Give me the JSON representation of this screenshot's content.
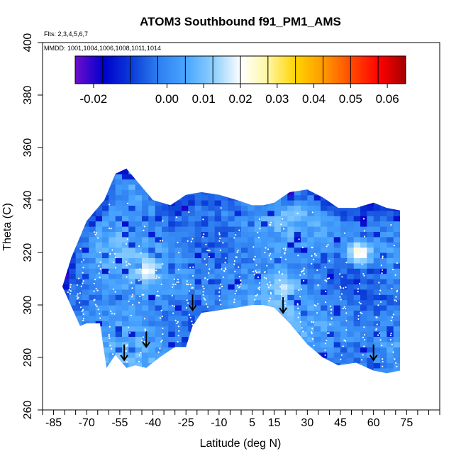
{
  "chart_data": {
    "type": "heatmap",
    "title": "ATOM3 Southbound f91_PM1_AMS",
    "subtitle": "Flts: 2,3,4,5,6,7",
    "annotation": "MMDD: 1001,1004,1006,1008,1011,1014",
    "xlabel": "Latitude (deg N)",
    "ylabel": "Theta (C)",
    "xlim": [
      -90,
      90
    ],
    "ylim": [
      260,
      400
    ],
    "x_ticks": [
      -85,
      -70,
      -55,
      -40,
      -25,
      -10,
      5,
      15,
      30,
      45,
      60,
      75
    ],
    "y_ticks": [
      260,
      280,
      300,
      320,
      340,
      360,
      380,
      400
    ],
    "colorbar": {
      "range": [
        -0.025,
        0.065
      ],
      "tick_labels": [
        "-0.02",
        "0.00",
        "0.01",
        "0.02",
        "0.03",
        "0.04",
        "0.05",
        "0.06"
      ],
      "tick_values": [
        -0.02,
        0.0,
        0.01,
        0.02,
        0.03,
        0.04,
        0.05,
        0.06
      ],
      "colors": [
        "#6a0dcc",
        "#0000cc",
        "#0a3cd8",
        "#2f7ff0",
        "#4aa6ff",
        "#8fd0ff",
        "#ffffff",
        "#fff59a",
        "#ffd200",
        "#ff9800",
        "#ff4a00",
        "#ff0000",
        "#a00000"
      ]
    },
    "field_outline": {
      "lat": [
        -81,
        -77,
        -70,
        -62,
        -57,
        -52,
        -46,
        -40,
        -32,
        -25,
        -18,
        -10,
        -2,
        5,
        10,
        15,
        22,
        30,
        37,
        44,
        52,
        60,
        66,
        72,
        72,
        66,
        60,
        52,
        44,
        37,
        30,
        22,
        15,
        10,
        5,
        -2,
        -10,
        -18,
        -22,
        -25,
        -30,
        -37,
        -43,
        -48,
        -52,
        -55,
        -57,
        -61,
        -64,
        -67,
        -70,
        -73,
        -77,
        -81
      ],
      "theta_top": [
        307,
        318,
        332,
        340,
        350,
        352,
        346,
        340,
        338,
        342,
        343,
        342,
        340,
        338,
        338,
        339,
        343,
        344,
        341,
        337,
        337,
        339,
        337,
        336
      ],
      "theta_bottom": [
        275,
        274,
        275,
        278,
        277,
        280,
        285,
        293,
        299,
        300,
        300,
        299,
        298,
        297,
        292,
        284,
        284,
        280,
        276,
        277,
        276,
        279,
        281,
        276,
        293,
        293,
        293,
        292
      ]
    },
    "hotspots": [
      {
        "lat": 52,
        "theta": 319,
        "value": 0.028
      },
      {
        "lat": -44,
        "theta": 312,
        "value": 0.022
      },
      {
        "lat": 18,
        "theta": 306,
        "value": 0.017
      }
    ],
    "arrows_lat": [
      -53,
      -43,
      -22,
      19,
      60
    ],
    "arrows_theta": [
      279,
      284,
      298,
      297,
      279
    ]
  }
}
